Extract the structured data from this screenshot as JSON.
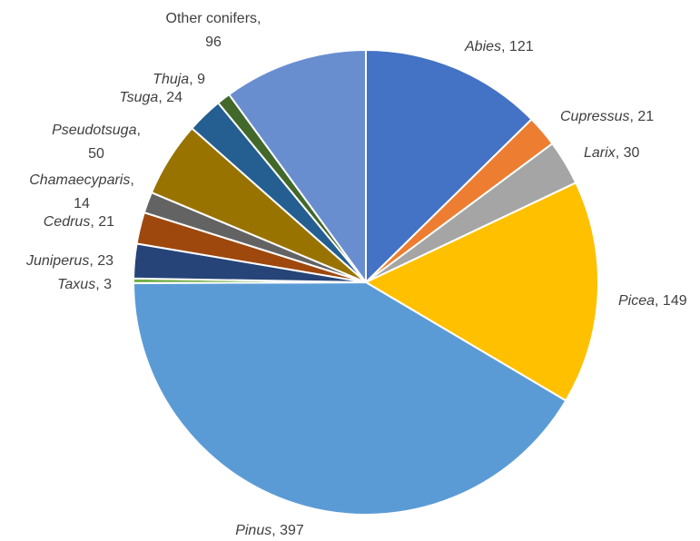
{
  "chart_data": {
    "type": "pie",
    "title": "",
    "slices": [
      {
        "name": "Abies",
        "value": 121,
        "color": "#4472C4",
        "italic": true
      },
      {
        "name": "Cupressus",
        "value": 21,
        "color": "#ED7D31",
        "italic": true
      },
      {
        "name": "Larix",
        "value": 30,
        "color": "#A5A5A5",
        "italic": true
      },
      {
        "name": "Picea",
        "value": 149,
        "color": "#FFC000",
        "italic": true
      },
      {
        "name": "Pinus",
        "value": 397,
        "color": "#5B9BD5",
        "italic": true
      },
      {
        "name": "Taxus",
        "value": 3,
        "color": "#70AD47",
        "italic": true
      },
      {
        "name": "Juniperus",
        "value": 23,
        "color": "#264478",
        "italic": true
      },
      {
        "name": "Cedrus",
        "value": 21,
        "color": "#9E480E",
        "italic": true
      },
      {
        "name": "Chamaecyparis",
        "value": 14,
        "color": "#636363",
        "italic": true
      },
      {
        "name": "Pseudotsuga",
        "value": 50,
        "color": "#997300",
        "italic": true
      },
      {
        "name": "Tsuga",
        "value": 24,
        "color": "#255E91",
        "italic": true
      },
      {
        "name": "Thuja",
        "value": 9,
        "color": "#43682B",
        "italic": true
      },
      {
        "name": "Other conifers",
        "value": 96,
        "color": "#698ED0",
        "italic": false
      }
    ]
  }
}
